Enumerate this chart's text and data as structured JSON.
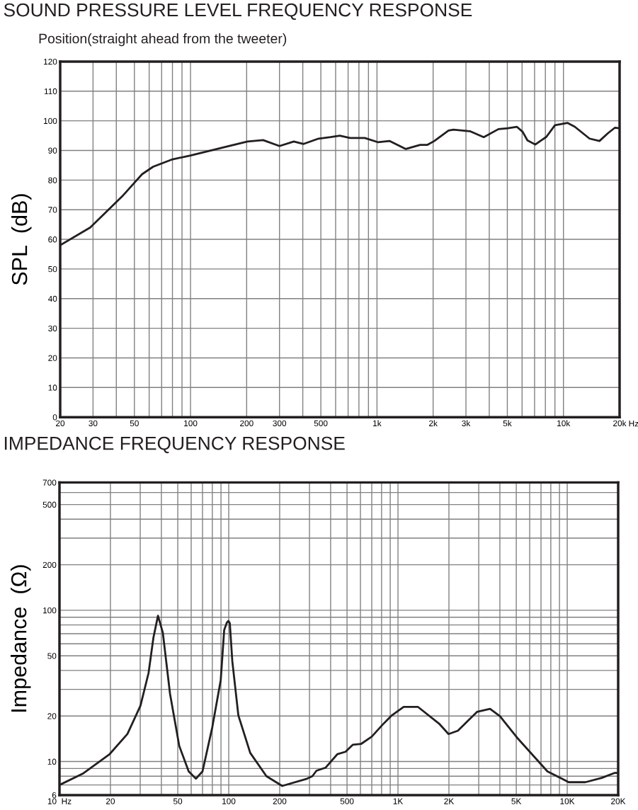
{
  "chart_data": [
    {
      "type": "line",
      "title": "SOUND PRESSURE LEVEL FREQUENCY RESPONSE",
      "subtitle": "Position(straight ahead from the tweeter)",
      "ylabel": "SPL  (dB)",
      "xlabel": "Hz",
      "log": "x",
      "grid": true,
      "marker": "none",
      "line_style": "solid",
      "xlim": [
        20,
        20000
      ],
      "ylim": [
        0,
        120
      ],
      "xticks": [
        20,
        30,
        {
          "value": 40,
          "label": null
        },
        50,
        {
          "value": 60,
          "label": null
        },
        {
          "value": 70,
          "label": null
        },
        {
          "value": 80,
          "label": null
        },
        {
          "value": 90,
          "label": null
        },
        100,
        200,
        300,
        {
          "value": 400,
          "label": null
        },
        500,
        {
          "value": 600,
          "label": null
        },
        {
          "value": 700,
          "label": null
        },
        {
          "value": 800,
          "label": null
        },
        {
          "value": 900,
          "label": null
        },
        {
          "value": 1000,
          "label": "1k"
        },
        {
          "value": 2000,
          "label": "2k"
        },
        {
          "value": 3000,
          "label": "3k"
        },
        {
          "value": 4000,
          "label": null
        },
        {
          "value": 5000,
          "label": "5k"
        },
        {
          "value": 6000,
          "label": null
        },
        {
          "value": 7000,
          "label": null
        },
        {
          "value": 8000,
          "label": null
        },
        {
          "value": 9000,
          "label": null
        },
        {
          "value": 10000,
          "label": "10k"
        },
        {
          "value": 20000,
          "label": "20k"
        }
      ],
      "yticks": [
        0,
        10,
        20,
        30,
        40,
        50,
        60,
        70,
        80,
        90,
        100,
        110,
        120
      ],
      "series": [
        {
          "color": "#231f20",
          "x": [
            20,
            29,
            43,
            55,
            63,
            80,
            100,
            149,
            202,
            245,
            300,
            358,
            404,
            486,
            563,
            632,
            717,
            860,
            1010,
            1166,
            1428,
            1704,
            1865,
            2030,
            2418,
            2570,
            3150,
            3736,
            4480,
            5030,
            5620,
            6040,
            6410,
            7060,
            8100,
            9000,
            10500,
            11500,
            13800,
            15600,
            17300,
            18900,
            20000
          ],
          "values": [
            58,
            64,
            74.5,
            82,
            84.5,
            87,
            88.3,
            91,
            93,
            93.5,
            91.5,
            93,
            92.2,
            94,
            94.5,
            95,
            94.2,
            94.2,
            92.8,
            93.2,
            90.5,
            91.9,
            91.9,
            93.2,
            96.7,
            97,
            96.5,
            94.5,
            97.2,
            97.5,
            98,
            96.3,
            93.4,
            92,
            94.6,
            98.5,
            99.3,
            98,
            94,
            93.2,
            95.8,
            97.7,
            97.5
          ]
        }
      ]
    },
    {
      "type": "line",
      "title": "IMPEDANCE FREQUENCY RESPONSE",
      "ylabel": "Impedance  (Ω)",
      "log": "xy",
      "grid": true,
      "marker": "none",
      "line_style": "solid",
      "xlim": [
        10,
        20000
      ],
      "ylim": [
        6,
        700
      ],
      "xticks": [
        {
          "value": 10,
          "label": "10  Hz"
        },
        20,
        {
          "value": 30,
          "label": null
        },
        {
          "value": 40,
          "label": null
        },
        50,
        {
          "value": 60,
          "label": null
        },
        {
          "value": 70,
          "label": null
        },
        {
          "value": 80,
          "label": null
        },
        {
          "value": 90,
          "label": null
        },
        100,
        200,
        {
          "value": 300,
          "label": null
        },
        {
          "value": 400,
          "label": null
        },
        500,
        {
          "value": 600,
          "label": null
        },
        {
          "value": 700,
          "label": null
        },
        {
          "value": 800,
          "label": null
        },
        {
          "value": 900,
          "label": null
        },
        {
          "value": 1000,
          "label": "1K"
        },
        {
          "value": 2000,
          "label": "2K"
        },
        {
          "value": 3000,
          "label": null
        },
        {
          "value": 4000,
          "label": null
        },
        {
          "value": 5000,
          "label": "5K"
        },
        {
          "value": 6000,
          "label": null
        },
        {
          "value": 7000,
          "label": null
        },
        {
          "value": 8000,
          "label": null
        },
        {
          "value": 9000,
          "label": null
        },
        {
          "value": 10000,
          "label": "10K"
        },
        {
          "value": 20000,
          "label": "20K"
        }
      ],
      "yticks": [
        6,
        {
          "value": 7,
          "label": null
        },
        {
          "value": 8,
          "label": null
        },
        {
          "value": 9,
          "label": null
        },
        10,
        20,
        {
          "value": 30,
          "label": null
        },
        {
          "value": 40,
          "label": null
        },
        50,
        {
          "value": 60,
          "label": null
        },
        {
          "value": 70,
          "label": null
        },
        {
          "value": 80,
          "label": null
        },
        {
          "value": 90,
          "label": null
        },
        100,
        200,
        {
          "value": 300,
          "label": null
        },
        {
          "value": 400,
          "label": null
        },
        500,
        {
          "value": 600,
          "label": null
        },
        700
      ],
      "series": [
        {
          "color": "#231f20",
          "x": [
            10,
            13.7,
            19.8,
            25.2,
            30.1,
            33.6,
            35.9,
            38.2,
            40.8,
            45,
            51,
            58,
            64,
            70,
            80,
            89.7,
            94,
            97.5,
            99.6,
            101.5,
            105,
            114,
            134,
            167,
            207,
            290,
            312,
            330,
            373,
            439,
            490,
            540,
            607,
            700,
            810,
            920,
            1080,
            1310,
            1750,
            1990,
            2260,
            2930,
            3500,
            4010,
            5050,
            7640,
            9300,
            10200,
            12800,
            16000,
            19000,
            20000
          ],
          "values": [
            7.0,
            8.3,
            11.2,
            15.2,
            23.4,
            38.5,
            66,
            92,
            71,
            28,
            12.7,
            8.6,
            7.7,
            8.6,
            16.9,
            34.6,
            74,
            83,
            85,
            82,
            46,
            20.2,
            11.4,
            8.0,
            6.9,
            7.7,
            8.0,
            8.7,
            9.1,
            11.2,
            11.6,
            12.9,
            13.1,
            14.6,
            17.5,
            20.2,
            23,
            23,
            17.8,
            15.2,
            16,
            21.3,
            22.3,
            19.9,
            14.4,
            8.6,
            7.7,
            7.3,
            7.3,
            7.8,
            8.4,
            8.4
          ]
        }
      ]
    }
  ]
}
